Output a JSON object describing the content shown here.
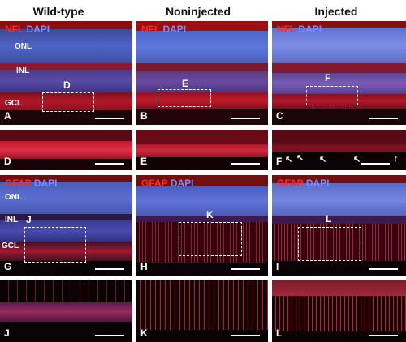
{
  "columns": [
    "Wild-type",
    "Noninjected",
    "Injected"
  ],
  "stains": {
    "nfl": {
      "marker": "NFL",
      "counter": "DAPI"
    },
    "gfap": {
      "marker": "GFAP",
      "counter": "DAPI"
    }
  },
  "layers": {
    "onl": "ONL",
    "inl": "INL",
    "gcl": "GCL"
  },
  "panel_letters": [
    "A",
    "B",
    "C",
    "D",
    "E",
    "F",
    "G",
    "H",
    "I",
    "J",
    "K",
    "L"
  ],
  "inset_labels": {
    "a": "D",
    "b": "E",
    "c": "F",
    "g": "J",
    "h": "K",
    "i": "L"
  },
  "colors": {
    "red": "#ff2a2a",
    "blue": "#7f8cff"
  }
}
